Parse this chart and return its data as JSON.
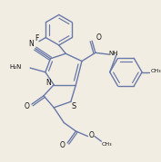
{
  "bg": "#f2ede3",
  "lc": "#6878a8",
  "tc": "#111111",
  "lw": 1.0,
  "fs": 5.0,
  "figsize": [
    1.77,
    1.79
  ],
  "dpi": 100,
  "xlim": [
    0,
    177
  ],
  "ylim": [
    0,
    179
  ]
}
